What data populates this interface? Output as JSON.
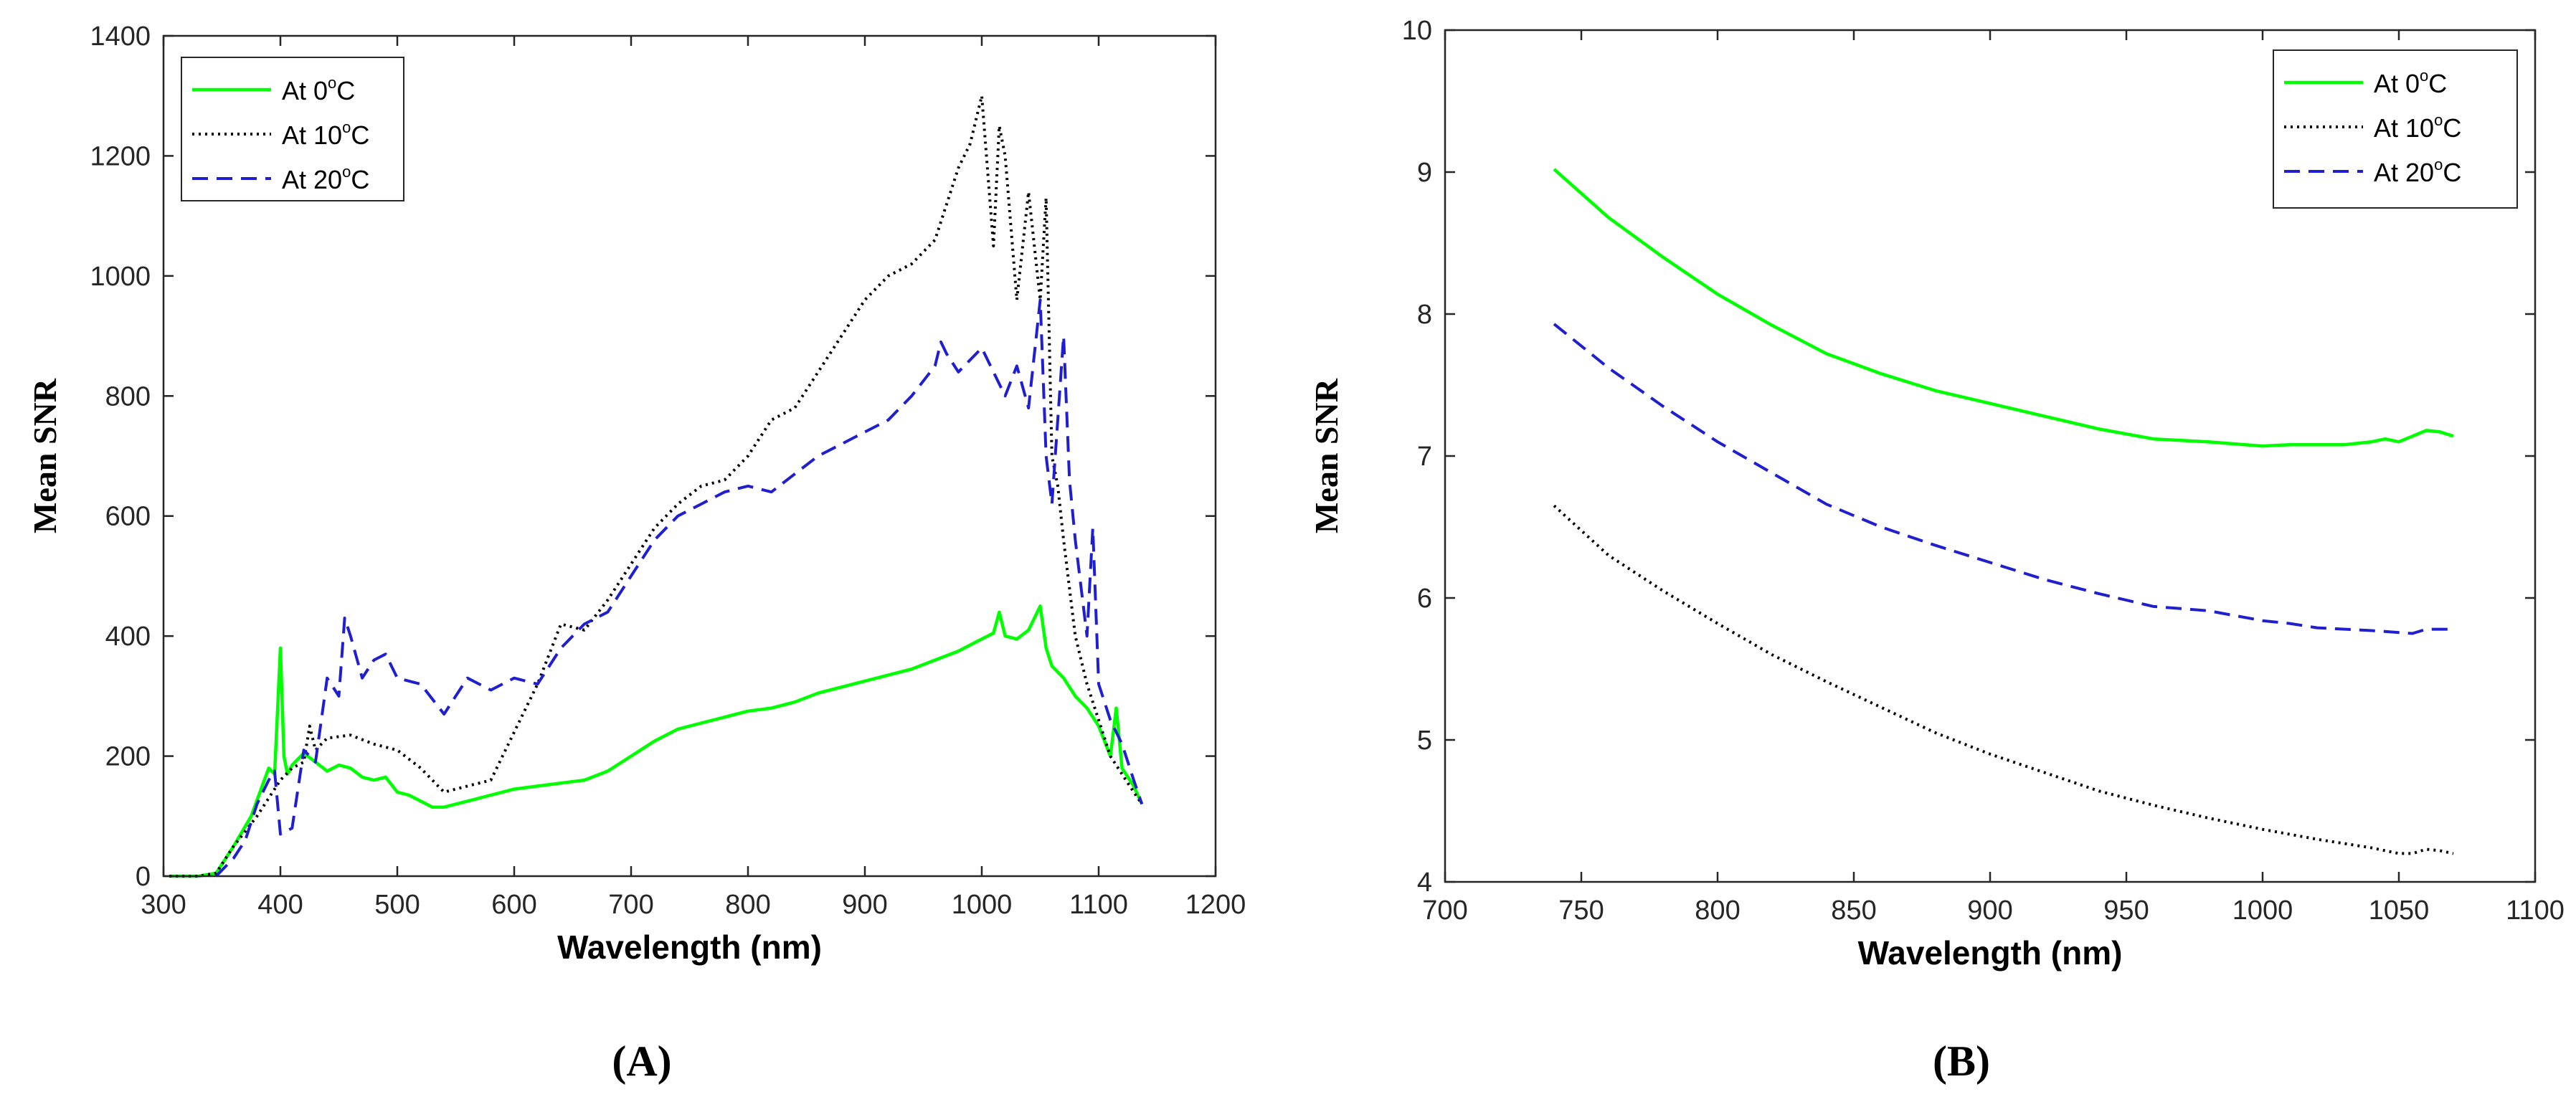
{
  "panels": [
    {
      "label": "(A)"
    },
    {
      "label": "(B)"
    }
  ],
  "chart_data": [
    {
      "type": "line",
      "panel": "(A)",
      "xlabel": "Wavelength (nm)",
      "ylabel": "Mean SNR",
      "xlim": [
        300,
        1200
      ],
      "ylim": [
        0,
        1400
      ],
      "xticks": [
        300,
        400,
        500,
        600,
        700,
        800,
        900,
        1000,
        1100,
        1200
      ],
      "yticks": [
        0,
        200,
        400,
        600,
        800,
        1000,
        1200,
        1400
      ],
      "legend_position": "top-left",
      "series": [
        {
          "name": "At 0°C",
          "legend_main": "At 0",
          "legend_sup": "o",
          "legend_tail": "C",
          "color": "#00ff00",
          "style": "solid",
          "x": [
            305,
            330,
            345,
            360,
            375,
            390,
            395,
            400,
            403,
            406,
            410,
            420,
            430,
            440,
            450,
            460,
            470,
            480,
            490,
            500,
            510,
            520,
            530,
            540,
            560,
            580,
            600,
            620,
            640,
            660,
            680,
            700,
            720,
            740,
            760,
            780,
            800,
            820,
            840,
            860,
            880,
            900,
            920,
            940,
            960,
            980,
            1000,
            1010,
            1015,
            1020,
            1030,
            1040,
            1050,
            1055,
            1060,
            1070,
            1080,
            1090,
            1100,
            1110,
            1115,
            1120,
            1130,
            1137
          ],
          "y": [
            0,
            0,
            5,
            50,
            100,
            180,
            170,
            380,
            200,
            170,
            185,
            205,
            190,
            175,
            185,
            180,
            165,
            160,
            165,
            140,
            135,
            125,
            115,
            115,
            125,
            135,
            145,
            150,
            155,
            160,
            175,
            200,
            225,
            245,
            255,
            265,
            275,
            280,
            290,
            305,
            315,
            325,
            335,
            345,
            360,
            375,
            395,
            405,
            440,
            400,
            395,
            410,
            450,
            380,
            350,
            330,
            300,
            280,
            250,
            200,
            280,
            180,
            150,
            120
          ]
        },
        {
          "name": "At 10°C",
          "legend_main": "At 10",
          "legend_sup": "o",
          "legend_tail": "C",
          "color": "#000000",
          "style": "dotted",
          "x": [
            305,
            330,
            345,
            360,
            380,
            400,
            410,
            420,
            425,
            430,
            440,
            460,
            480,
            500,
            520,
            540,
            560,
            580,
            600,
            620,
            640,
            660,
            680,
            700,
            720,
            740,
            760,
            780,
            800,
            820,
            840,
            860,
            880,
            900,
            920,
            940,
            960,
            970,
            980,
            990,
            1000,
            1010,
            1015,
            1020,
            1030,
            1040,
            1045,
            1050,
            1055,
            1060,
            1065,
            1070,
            1080,
            1090,
            1100,
            1110,
            1120,
            1130,
            1137
          ],
          "y": [
            0,
            0,
            5,
            50,
            100,
            160,
            180,
            190,
            250,
            210,
            230,
            235,
            220,
            210,
            180,
            140,
            150,
            160,
            240,
            320,
            420,
            410,
            460,
            520,
            580,
            620,
            650,
            660,
            700,
            760,
            780,
            840,
            900,
            960,
            1000,
            1020,
            1060,
            1120,
            1180,
            1220,
            1300,
            1050,
            1250,
            1200,
            960,
            1140,
            1050,
            960,
            1130,
            700,
            650,
            560,
            400,
            320,
            260,
            200,
            170,
            140,
            120
          ]
        },
        {
          "name": "At 20°C",
          "legend_main": "At 20",
          "legend_sup": "o",
          "legend_tail": "C",
          "color": "#1f1fcf",
          "style": "dashed",
          "x": [
            345,
            360,
            370,
            380,
            390,
            395,
            400,
            410,
            420,
            430,
            440,
            450,
            455,
            460,
            470,
            480,
            490,
            500,
            520,
            540,
            560,
            580,
            600,
            620,
            640,
            660,
            680,
            700,
            720,
            740,
            760,
            780,
            800,
            820,
            840,
            860,
            880,
            900,
            920,
            940,
            960,
            965,
            970,
            980,
            1000,
            1020,
            1030,
            1040,
            1050,
            1055,
            1060,
            1070,
            1075,
            1080,
            1090,
            1095,
            1100,
            1110,
            1120,
            1130,
            1137
          ],
          "y": [
            0,
            30,
            60,
            120,
            160,
            175,
            70,
            80,
            210,
            190,
            330,
            300,
            430,
            400,
            330,
            360,
            370,
            330,
            320,
            270,
            330,
            310,
            330,
            320,
            380,
            420,
            440,
            500,
            560,
            600,
            620,
            640,
            650,
            640,
            670,
            700,
            720,
            740,
            760,
            800,
            850,
            890,
            870,
            840,
            880,
            800,
            850,
            780,
            960,
            700,
            620,
            900,
            660,
            560,
            400,
            580,
            320,
            260,
            220,
            160,
            120
          ]
        }
      ]
    },
    {
      "type": "line",
      "panel": "(B)",
      "xlabel": "Wavelength (nm)",
      "ylabel": "Mean SNR",
      "xlim": [
        700,
        1100
      ],
      "ylim": [
        4,
        10
      ],
      "xticks": [
        700,
        750,
        800,
        850,
        900,
        950,
        1000,
        1050,
        1100
      ],
      "yticks": [
        4,
        5,
        6,
        7,
        8,
        9,
        10
      ],
      "legend_position": "top-right",
      "series": [
        {
          "name": "At 0°C",
          "legend_main": "At 0",
          "legend_sup": "o",
          "legend_tail": "C",
          "color": "#00ff00",
          "style": "solid",
          "x": [
            740,
            750,
            760,
            780,
            800,
            820,
            840,
            860,
            880,
            900,
            920,
            940,
            960,
            980,
            1000,
            1010,
            1020,
            1030,
            1040,
            1045,
            1050,
            1060,
            1065,
            1070
          ],
          "y": [
            9.02,
            8.85,
            8.68,
            8.4,
            8.14,
            7.92,
            7.72,
            7.58,
            7.46,
            7.37,
            7.28,
            7.19,
            7.12,
            7.1,
            7.07,
            7.08,
            7.08,
            7.08,
            7.1,
            7.12,
            7.1,
            7.18,
            7.17,
            7.14
          ]
        },
        {
          "name": "At 10°C",
          "legend_main": "At 10",
          "legend_sup": "o",
          "legend_tail": "C",
          "color": "#000000",
          "style": "dotted",
          "x": [
            740,
            760,
            780,
            800,
            820,
            840,
            860,
            880,
            900,
            920,
            940,
            960,
            980,
            1000,
            1020,
            1040,
            1050,
            1055,
            1060,
            1065,
            1070
          ],
          "y": [
            6.65,
            6.3,
            6.05,
            5.82,
            5.6,
            5.41,
            5.23,
            5.05,
            4.9,
            4.77,
            4.64,
            4.54,
            4.45,
            4.37,
            4.3,
            4.24,
            4.2,
            4.2,
            4.23,
            4.22,
            4.2
          ]
        },
        {
          "name": "At 20°C",
          "legend_main": "At 20",
          "legend_sup": "o",
          "legend_tail": "C",
          "color": "#1f1fcf",
          "style": "dashed",
          "x": [
            740,
            760,
            780,
            800,
            820,
            840,
            860,
            880,
            900,
            920,
            940,
            960,
            980,
            1000,
            1010,
            1020,
            1040,
            1055,
            1060,
            1065,
            1070
          ],
          "y": [
            7.93,
            7.62,
            7.35,
            7.1,
            6.88,
            6.66,
            6.5,
            6.37,
            6.25,
            6.13,
            6.03,
            5.94,
            5.91,
            5.84,
            5.82,
            5.79,
            5.77,
            5.75,
            5.78,
            5.78,
            5.78
          ]
        }
      ]
    }
  ]
}
